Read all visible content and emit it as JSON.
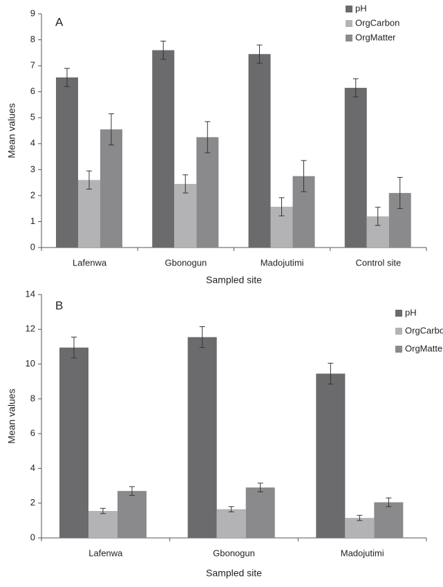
{
  "chart_data": [
    {
      "type": "bar",
      "panel_label": "A",
      "categories": [
        "Lafenwa",
        "Gbonogun",
        "Madojutimi",
        "Control site"
      ],
      "series": [
        {
          "name": "pH",
          "color": "#6b6b6d",
          "values": [
            6.55,
            7.6,
            7.45,
            6.15
          ],
          "errors": [
            0.35,
            0.35,
            0.35,
            0.35
          ]
        },
        {
          "name": "OrgCarbon",
          "color": "#b3b3b5",
          "values": [
            2.6,
            2.45,
            1.57,
            1.2
          ],
          "errors": [
            0.35,
            0.35,
            0.35,
            0.35
          ]
        },
        {
          "name": "OrgMatter",
          "color": "#8a8a8c",
          "values": [
            4.55,
            4.25,
            2.75,
            2.1
          ],
          "errors": [
            0.6,
            0.6,
            0.6,
            0.6
          ]
        }
      ],
      "title": "",
      "xlabel": "Sampled site",
      "ylabel": "Mean values",
      "ylim": [
        0,
        9
      ],
      "yticks": [
        "0",
        "1",
        "2",
        "3",
        "4",
        "5",
        "6",
        "7",
        "8",
        "9"
      ],
      "legend_position": "top-right",
      "grid": false
    },
    {
      "type": "bar",
      "panel_label": "B",
      "categories": [
        "Lafenwa",
        "Gbonogun",
        "Madojutimi"
      ],
      "series": [
        {
          "name": "pH",
          "color": "#6b6b6d",
          "values": [
            10.95,
            11.55,
            9.45
          ],
          "errors": [
            0.6,
            0.6,
            0.6
          ]
        },
        {
          "name": "OrgCarbon",
          "color": "#b3b3b5",
          "values": [
            1.55,
            1.65,
            1.15
          ],
          "errors": [
            0.15,
            0.15,
            0.15
          ]
        },
        {
          "name": "OrgMatter",
          "color": "#8a8a8c",
          "values": [
            2.7,
            2.9,
            2.05
          ],
          "errors": [
            0.25,
            0.25,
            0.25
          ]
        }
      ],
      "title": "",
      "xlabel": "Sampled site",
      "ylabel": "Mean values",
      "ylim": [
        0,
        14
      ],
      "yticks": [
        "0",
        "2",
        "4",
        "6",
        "8",
        "10",
        "12",
        "14"
      ],
      "legend_position": "top-right",
      "grid": false
    }
  ]
}
